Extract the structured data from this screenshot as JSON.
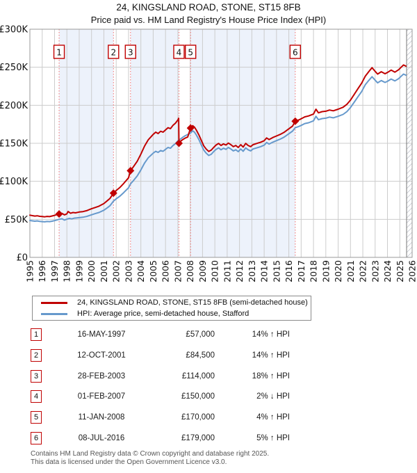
{
  "title": "24, KINGSLAND ROAD, STONE, ST15 8FB",
  "subtitle": "Price paid vs. HM Land Registry's House Price Index (HPI)",
  "legend": {
    "property": "24, KINGSLAND ROAD, STONE, ST15 8FB (semi-detached house)",
    "hpi": "HPI: Average price, semi-detached house, Stafford"
  },
  "footer": {
    "line1": "Contains HM Land Registry data © Crown copyright and database right 2025.",
    "line2": "This data is licensed under the Open Government Licence v3.0."
  },
  "chart_data": {
    "type": "line",
    "xlim": [
      1995,
      2026
    ],
    "ylim": [
      0,
      300000
    ],
    "x_ticks": [
      1995,
      1996,
      1997,
      1998,
      1999,
      2000,
      2001,
      2002,
      2003,
      2004,
      2005,
      2006,
      2007,
      2008,
      2009,
      2010,
      2011,
      2012,
      2013,
      2014,
      2015,
      2016,
      2017,
      2018,
      2019,
      2020,
      2021,
      2022,
      2023,
      2024,
      2025,
      2026
    ],
    "y_ticks": [
      {
        "value": 0,
        "label": "£0"
      },
      {
        "value": 50000,
        "label": "£50K"
      },
      {
        "value": 100000,
        "label": "£100K"
      },
      {
        "value": 150000,
        "label": "£150K"
      },
      {
        "value": 200000,
        "label": "£200K"
      },
      {
        "value": 250000,
        "label": "£250K"
      },
      {
        "value": 300000,
        "label": "£300K"
      }
    ],
    "colors": {
      "property_line": "#c00000",
      "hpi_line": "#6699cc",
      "sale_dashed_line": "#f26d6d",
      "shaded_band": "#edf2fb",
      "gridline": "#cccccc",
      "plot_border": "#999999",
      "hatch": "#b9bdc7"
    },
    "shaded_bands": [
      [
        1997.37,
        2001.78
      ],
      [
        2003.16,
        2007.09
      ],
      [
        2008.03,
        2016.52
      ]
    ],
    "future_hatch_start": 2025.55,
    "sales": [
      {
        "num": "1",
        "date": "16-MAY-1997",
        "year": 1997.37,
        "price": 57000,
        "price_label": "£57,000",
        "delta": "14% ↑ HPI"
      },
      {
        "num": "2",
        "date": "12-OCT-2001",
        "year": 2001.78,
        "price": 84500,
        "price_label": "£84,500",
        "delta": "14% ↑ HPI"
      },
      {
        "num": "3",
        "date": "28-FEB-2003",
        "year": 2003.16,
        "price": 114000,
        "price_label": "£114,000",
        "delta": "18% ↑ HPI"
      },
      {
        "num": "4",
        "date": "01-FEB-2007",
        "year": 2007.09,
        "price": 150000,
        "price_label": "£150,000",
        "delta": "2% ↓ HPI"
      },
      {
        "num": "5",
        "date": "11-JAN-2008",
        "year": 2008.03,
        "price": 170000,
        "price_label": "£170,000",
        "delta": "4% ↑ HPI"
      },
      {
        "num": "6",
        "date": "08-JUL-2016",
        "year": 2016.52,
        "price": 179000,
        "price_label": "£179,000",
        "delta": "5% ↑ HPI"
      }
    ],
    "series": [
      {
        "name": "24, KINGSLAND ROAD, STONE, ST15 8FB (semi-detached house)",
        "color": "#c00000",
        "points": [
          [
            1995.0,
            55500
          ],
          [
            1995.2,
            54900
          ],
          [
            1995.4,
            54300
          ],
          [
            1995.6,
            54700
          ],
          [
            1995.8,
            54000
          ],
          [
            1996.0,
            53700
          ],
          [
            1996.2,
            53300
          ],
          [
            1996.4,
            53900
          ],
          [
            1996.6,
            53600
          ],
          [
            1996.8,
            54400
          ],
          [
            1997.0,
            55200
          ],
          [
            1997.2,
            56200
          ],
          [
            1997.37,
            57000
          ],
          [
            1997.6,
            57900
          ],
          [
            1997.8,
            55900
          ],
          [
            1998.0,
            57300
          ],
          [
            1998.1,
            60300
          ],
          [
            1998.3,
            58000
          ],
          [
            1998.5,
            59000
          ],
          [
            1998.7,
            58500
          ],
          [
            1999.0,
            59600
          ],
          [
            1999.3,
            60200
          ],
          [
            1999.6,
            61400
          ],
          [
            2000.0,
            63900
          ],
          [
            2000.3,
            65600
          ],
          [
            2000.6,
            67300
          ],
          [
            2001.0,
            70800
          ],
          [
            2001.3,
            74800
          ],
          [
            2001.5,
            77600
          ],
          [
            2001.78,
            84500
          ],
          [
            2002.0,
            87900
          ],
          [
            2002.3,
            91900
          ],
          [
            2002.6,
            97000
          ],
          [
            2003.0,
            104500
          ],
          [
            2003.16,
            114000
          ],
          [
            2003.4,
            119200
          ],
          [
            2003.7,
            126300
          ],
          [
            2004.0,
            135700
          ],
          [
            2004.3,
            146300
          ],
          [
            2004.6,
            154600
          ],
          [
            2004.8,
            158100
          ],
          [
            2005.0,
            161700
          ],
          [
            2005.2,
            164600
          ],
          [
            2005.4,
            162800
          ],
          [
            2005.6,
            165800
          ],
          [
            2005.8,
            164600
          ],
          [
            2006.0,
            167600
          ],
          [
            2006.2,
            170500
          ],
          [
            2006.4,
            169300
          ],
          [
            2006.6,
            173500
          ],
          [
            2006.8,
            176400
          ],
          [
            2007.0,
            180600
          ],
          [
            2007.07,
            183000
          ],
          [
            2007.09,
            150000
          ],
          [
            2007.2,
            152500
          ],
          [
            2007.4,
            154900
          ],
          [
            2007.6,
            156900
          ],
          [
            2007.8,
            158300
          ],
          [
            2008.03,
            170000
          ],
          [
            2008.2,
            173100
          ],
          [
            2008.35,
            171100
          ],
          [
            2008.5,
            167400
          ],
          [
            2008.7,
            161200
          ],
          [
            2008.9,
            153900
          ],
          [
            2009.1,
            146600
          ],
          [
            2009.3,
            142400
          ],
          [
            2009.5,
            139300
          ],
          [
            2009.7,
            140900
          ],
          [
            2009.9,
            144500
          ],
          [
            2010.1,
            147700
          ],
          [
            2010.3,
            149800
          ],
          [
            2010.5,
            147200
          ],
          [
            2010.7,
            149200
          ],
          [
            2010.9,
            147700
          ],
          [
            2011.1,
            150300
          ],
          [
            2011.3,
            148200
          ],
          [
            2011.5,
            145600
          ],
          [
            2011.7,
            147200
          ],
          [
            2011.9,
            144500
          ],
          [
            2012.1,
            148200
          ],
          [
            2012.3,
            145100
          ],
          [
            2012.5,
            149800
          ],
          [
            2012.7,
            147200
          ],
          [
            2012.9,
            145600
          ],
          [
            2013.1,
            148200
          ],
          [
            2013.4,
            149800
          ],
          [
            2013.7,
            151300
          ],
          [
            2014.0,
            153400
          ],
          [
            2014.2,
            157000
          ],
          [
            2014.4,
            154900
          ],
          [
            2014.7,
            157600
          ],
          [
            2015.0,
            159600
          ],
          [
            2015.3,
            161700
          ],
          [
            2015.6,
            164300
          ],
          [
            2016.0,
            169000
          ],
          [
            2016.3,
            172600
          ],
          [
            2016.52,
            179000
          ],
          [
            2016.8,
            180600
          ],
          [
            2017.0,
            182200
          ],
          [
            2017.3,
            184800
          ],
          [
            2017.6,
            185900
          ],
          [
            2018.0,
            188500
          ],
          [
            2018.2,
            194800
          ],
          [
            2018.4,
            190100
          ],
          [
            2018.7,
            191600
          ],
          [
            2019.0,
            192200
          ],
          [
            2019.3,
            193700
          ],
          [
            2019.6,
            192700
          ],
          [
            2020.0,
            194800
          ],
          [
            2020.4,
            197400
          ],
          [
            2020.7,
            201100
          ],
          [
            2021.0,
            206800
          ],
          [
            2021.3,
            214200
          ],
          [
            2021.6,
            221600
          ],
          [
            2021.9,
            228900
          ],
          [
            2022.2,
            238300
          ],
          [
            2022.5,
            244600
          ],
          [
            2022.75,
            249400
          ],
          [
            2023.0,
            244600
          ],
          [
            2023.2,
            241000
          ],
          [
            2023.5,
            244100
          ],
          [
            2023.8,
            241500
          ],
          [
            2024.0,
            243100
          ],
          [
            2024.3,
            246200
          ],
          [
            2024.6,
            243600
          ],
          [
            2024.9,
            246700
          ],
          [
            2025.1,
            249900
          ],
          [
            2025.3,
            253000
          ],
          [
            2025.5,
            251400
          ]
        ]
      },
      {
        "name": "HPI: Average price, semi-detached house, Stafford",
        "color": "#6699cc",
        "points": [
          [
            1995.0,
            48500
          ],
          [
            1995.2,
            48000
          ],
          [
            1995.4,
            47600
          ],
          [
            1995.6,
            47900
          ],
          [
            1995.8,
            47300
          ],
          [
            1996.0,
            47000
          ],
          [
            1996.2,
            46700
          ],
          [
            1996.4,
            47200
          ],
          [
            1996.6,
            47000
          ],
          [
            1996.8,
            47600
          ],
          [
            1997.0,
            48300
          ],
          [
            1997.2,
            49200
          ],
          [
            1997.37,
            50000
          ],
          [
            1997.6,
            50800
          ],
          [
            1997.8,
            49000
          ],
          [
            1998.0,
            50200
          ],
          [
            1998.2,
            51200
          ],
          [
            1998.4,
            50600
          ],
          [
            1998.6,
            51600
          ],
          [
            1998.8,
            51900
          ],
          [
            1999.0,
            52200
          ],
          [
            1999.3,
            52800
          ],
          [
            1999.6,
            53800
          ],
          [
            2000.0,
            56000
          ],
          [
            2000.3,
            57500
          ],
          [
            2000.6,
            59000
          ],
          [
            2001.0,
            62000
          ],
          [
            2001.3,
            65500
          ],
          [
            2001.5,
            68000
          ],
          [
            2001.78,
            74000
          ],
          [
            2002.0,
            77000
          ],
          [
            2002.3,
            80500
          ],
          [
            2002.6,
            85000
          ],
          [
            2003.0,
            91500
          ],
          [
            2003.16,
            96600
          ],
          [
            2003.4,
            101000
          ],
          [
            2003.7,
            107000
          ],
          [
            2004.0,
            115000
          ],
          [
            2004.3,
            124000
          ],
          [
            2004.6,
            131000
          ],
          [
            2004.8,
            134000
          ],
          [
            2005.0,
            137000
          ],
          [
            2005.2,
            139500
          ],
          [
            2005.4,
            138000
          ],
          [
            2005.6,
            140500
          ],
          [
            2005.8,
            139500
          ],
          [
            2006.0,
            142000
          ],
          [
            2006.2,
            144500
          ],
          [
            2006.4,
            143500
          ],
          [
            2006.6,
            147000
          ],
          [
            2006.8,
            149500
          ],
          [
            2007.0,
            153000
          ],
          [
            2007.2,
            155500
          ],
          [
            2007.4,
            158000
          ],
          [
            2007.6,
            160000
          ],
          [
            2007.8,
            161500
          ],
          [
            2008.03,
            163500
          ],
          [
            2008.2,
            166500
          ],
          [
            2008.35,
            164500
          ],
          [
            2008.5,
            161000
          ],
          [
            2008.7,
            155000
          ],
          [
            2008.9,
            148000
          ],
          [
            2009.1,
            141000
          ],
          [
            2009.3,
            137000
          ],
          [
            2009.5,
            134000
          ],
          [
            2009.7,
            135500
          ],
          [
            2009.9,
            139000
          ],
          [
            2010.1,
            142000
          ],
          [
            2010.3,
            144000
          ],
          [
            2010.5,
            141500
          ],
          [
            2010.7,
            143500
          ],
          [
            2010.9,
            142000
          ],
          [
            2011.1,
            144500
          ],
          [
            2011.3,
            142500
          ],
          [
            2011.5,
            140000
          ],
          [
            2011.7,
            141500
          ],
          [
            2011.9,
            139000
          ],
          [
            2012.1,
            142500
          ],
          [
            2012.3,
            139500
          ],
          [
            2012.5,
            144000
          ],
          [
            2012.7,
            141500
          ],
          [
            2012.9,
            140000
          ],
          [
            2013.1,
            142500
          ],
          [
            2013.4,
            144000
          ],
          [
            2013.7,
            145500
          ],
          [
            2014.0,
            147500
          ],
          [
            2014.2,
            151000
          ],
          [
            2014.4,
            149000
          ],
          [
            2014.7,
            151500
          ],
          [
            2015.0,
            153500
          ],
          [
            2015.3,
            155500
          ],
          [
            2015.6,
            158000
          ],
          [
            2016.0,
            162500
          ],
          [
            2016.3,
            166000
          ],
          [
            2016.52,
            170500
          ],
          [
            2016.8,
            172000
          ],
          [
            2017.0,
            173500
          ],
          [
            2017.3,
            176000
          ],
          [
            2017.6,
            177000
          ],
          [
            2018.0,
            179500
          ],
          [
            2018.2,
            185500
          ],
          [
            2018.4,
            181000
          ],
          [
            2018.7,
            182500
          ],
          [
            2019.0,
            183000
          ],
          [
            2019.3,
            184500
          ],
          [
            2019.6,
            183500
          ],
          [
            2020.0,
            185500
          ],
          [
            2020.4,
            188000
          ],
          [
            2020.7,
            191500
          ],
          [
            2021.0,
            197000
          ],
          [
            2021.3,
            204000
          ],
          [
            2021.6,
            211000
          ],
          [
            2021.9,
            218000
          ],
          [
            2022.2,
            227000
          ],
          [
            2022.5,
            233000
          ],
          [
            2022.75,
            237500
          ],
          [
            2023.0,
            233000
          ],
          [
            2023.2,
            229500
          ],
          [
            2023.5,
            232500
          ],
          [
            2023.8,
            230000
          ],
          [
            2024.0,
            231500
          ],
          [
            2024.3,
            234500
          ],
          [
            2024.6,
            232000
          ],
          [
            2024.9,
            235000
          ],
          [
            2025.1,
            238000
          ],
          [
            2025.3,
            241000
          ],
          [
            2025.5,
            239500
          ]
        ]
      }
    ]
  }
}
